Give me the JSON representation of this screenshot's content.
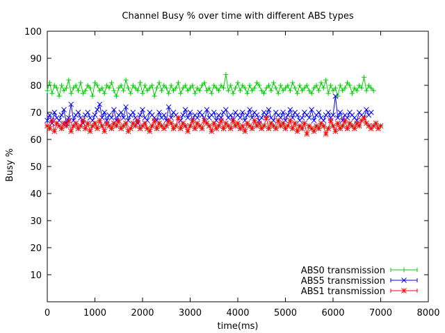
{
  "chart_data": {
    "type": "line",
    "title": "Channel Busy % over time with different ABS types",
    "xlabel": "time(ms)",
    "ylabel": "Busy %",
    "xlim": [
      0,
      8000
    ],
    "ylim": [
      0,
      100
    ],
    "x_ticks": [
      0,
      1000,
      2000,
      3000,
      4000,
      5000,
      6000,
      7000,
      8000
    ],
    "y_ticks": [
      10,
      20,
      30,
      40,
      50,
      60,
      70,
      80,
      90,
      100
    ],
    "grid": false,
    "legend_position": "bottom-right",
    "series": [
      {
        "name": "ABS0 transmission",
        "color": "#00cc00",
        "marker": "plus",
        "x_start": 0,
        "x_step": 50,
        "values": [
          78,
          81,
          77,
          80,
          79,
          76,
          80,
          78,
          79,
          82,
          77,
          79,
          80,
          78,
          81,
          77,
          78,
          80,
          79,
          76,
          81,
          80,
          78,
          79,
          77,
          80,
          79,
          81,
          78,
          76,
          79,
          80,
          78,
          82,
          79,
          77,
          80,
          79,
          78,
          81,
          77,
          80,
          78,
          79,
          80,
          76,
          79,
          81,
          78,
          80,
          79,
          77,
          80,
          78,
          79,
          81,
          77,
          79,
          80,
          78,
          79,
          80,
          77,
          79,
          78,
          80,
          81,
          78,
          79,
          77,
          80,
          79,
          78,
          80,
          79,
          84,
          78,
          80,
          77,
          79,
          81,
          78,
          80,
          79,
          77,
          80,
          78,
          79,
          81,
          80,
          78,
          77,
          79,
          80,
          78,
          81,
          79,
          77,
          80,
          78,
          79,
          80,
          78,
          81,
          79,
          77,
          80,
          78,
          79,
          80,
          78,
          77,
          79,
          80,
          78,
          81,
          79,
          82,
          77,
          80,
          78,
          79,
          76,
          80,
          78,
          79,
          81,
          80,
          77,
          79,
          78,
          80,
          79,
          83,
          78,
          80,
          79,
          78
        ]
      },
      {
        "name": "ABS5 transmission",
        "color": "#0000ff",
        "marker": "cross",
        "x_start": 0,
        "x_step": 50,
        "values": [
          67,
          69,
          66,
          70,
          68,
          67,
          69,
          71,
          66,
          68,
          73,
          67,
          69,
          70,
          68,
          66,
          69,
          70,
          68,
          67,
          69,
          71,
          73,
          68,
          70,
          67,
          69,
          68,
          71,
          67,
          69,
          70,
          68,
          72,
          67,
          69,
          70,
          68,
          66,
          69,
          71,
          68,
          67,
          70,
          69,
          68,
          67,
          70,
          68,
          69,
          67,
          72,
          68,
          70,
          69,
          68,
          67,
          69,
          71,
          68,
          70,
          67,
          69,
          68,
          70,
          69,
          67,
          71,
          68,
          69,
          70,
          67,
          69,
          68,
          70,
          71,
          68,
          69,
          67,
          70,
          69,
          68,
          70,
          67,
          69,
          71,
          68,
          70,
          69,
          67,
          68,
          70,
          69,
          71,
          68,
          67,
          70,
          69,
          68,
          70,
          67,
          69,
          71,
          68,
          70,
          69,
          67,
          68,
          70,
          69,
          68,
          71,
          67,
          69,
          70,
          68,
          67,
          69,
          70,
          68,
          69,
          76,
          68,
          70,
          67,
          69,
          68,
          70,
          69,
          68,
          67,
          70,
          69,
          68,
          71,
          69,
          70
        ]
      },
      {
        "name": "ABS1 transmission",
        "color": "#ff0000",
        "marker": "star",
        "x_start": 0,
        "x_step": 50,
        "values": [
          65,
          64,
          67,
          63,
          66,
          65,
          64,
          66,
          65,
          67,
          63,
          65,
          66,
          64,
          65,
          67,
          64,
          66,
          63,
          65,
          66,
          64,
          67,
          65,
          63,
          66,
          65,
          64,
          66,
          65,
          67,
          64,
          65,
          66,
          63,
          64,
          66,
          65,
          67,
          64,
          65,
          66,
          64,
          63,
          65,
          67,
          64,
          66,
          65,
          64,
          65,
          67,
          66,
          64,
          65,
          68,
          64,
          66,
          65,
          63,
          65,
          67,
          64,
          66,
          65,
          64,
          67,
          66,
          65,
          63,
          66,
          64,
          65,
          67,
          64,
          66,
          65,
          64,
          67,
          65,
          66,
          64,
          65,
          63,
          66,
          65,
          64,
          67,
          65,
          66,
          64,
          65,
          68,
          64,
          66,
          65,
          64,
          67,
          65,
          66,
          64,
          65,
          67,
          64,
          66,
          63,
          65,
          64,
          66,
          62,
          65,
          64,
          63,
          65,
          64,
          66,
          65,
          62,
          64,
          67,
          65,
          63,
          66,
          64,
          65,
          67,
          64,
          66,
          65,
          64,
          66,
          65,
          67,
          68,
          66,
          65,
          64,
          65,
          66,
          64,
          65
        ]
      }
    ]
  }
}
